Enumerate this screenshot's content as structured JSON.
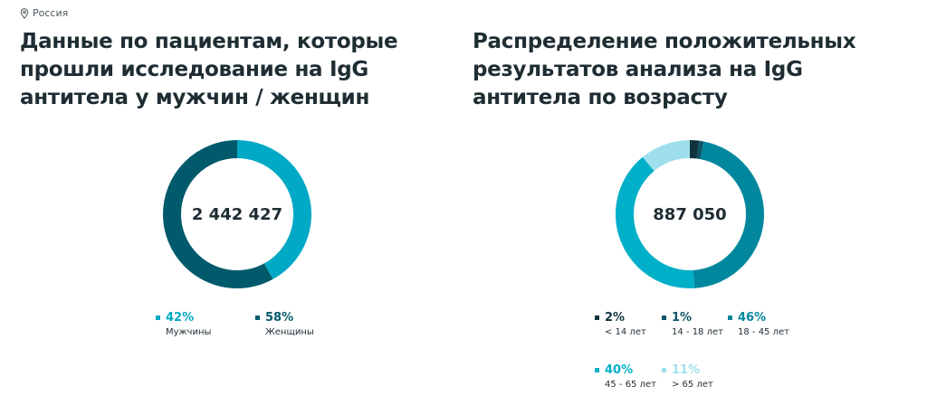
{
  "location": {
    "label": "Россия"
  },
  "left": {
    "title": "Данные по пациентам, которые прошли исследование на IgG антитела у мужчин / женщин",
    "total": "2 442 427",
    "chart_data": {
      "type": "pie",
      "categories": [
        "Мужчины",
        "Женщины"
      ],
      "values": [
        42,
        58
      ],
      "labels": [
        "42%",
        "58%"
      ],
      "colors": [
        "#00a9c6",
        "#005a6b"
      ]
    }
  },
  "right": {
    "title": "Распределение положительных результатов анализа на IgG антитела по возрасту",
    "total": "887 050",
    "chart_data": {
      "type": "pie",
      "categories": [
        "< 14 лет",
        "14 - 18 лет",
        "18 - 45 лет",
        "45 - 65 лет",
        "> 65 лет"
      ],
      "values": [
        2,
        1,
        46,
        40,
        11
      ],
      "labels": [
        "2%",
        "1%",
        "46%",
        "40%",
        "11%"
      ],
      "colors": [
        "#10343d",
        "#0b5566",
        "#00879e",
        "#00afc8",
        "#9fdfeb"
      ]
    }
  }
}
